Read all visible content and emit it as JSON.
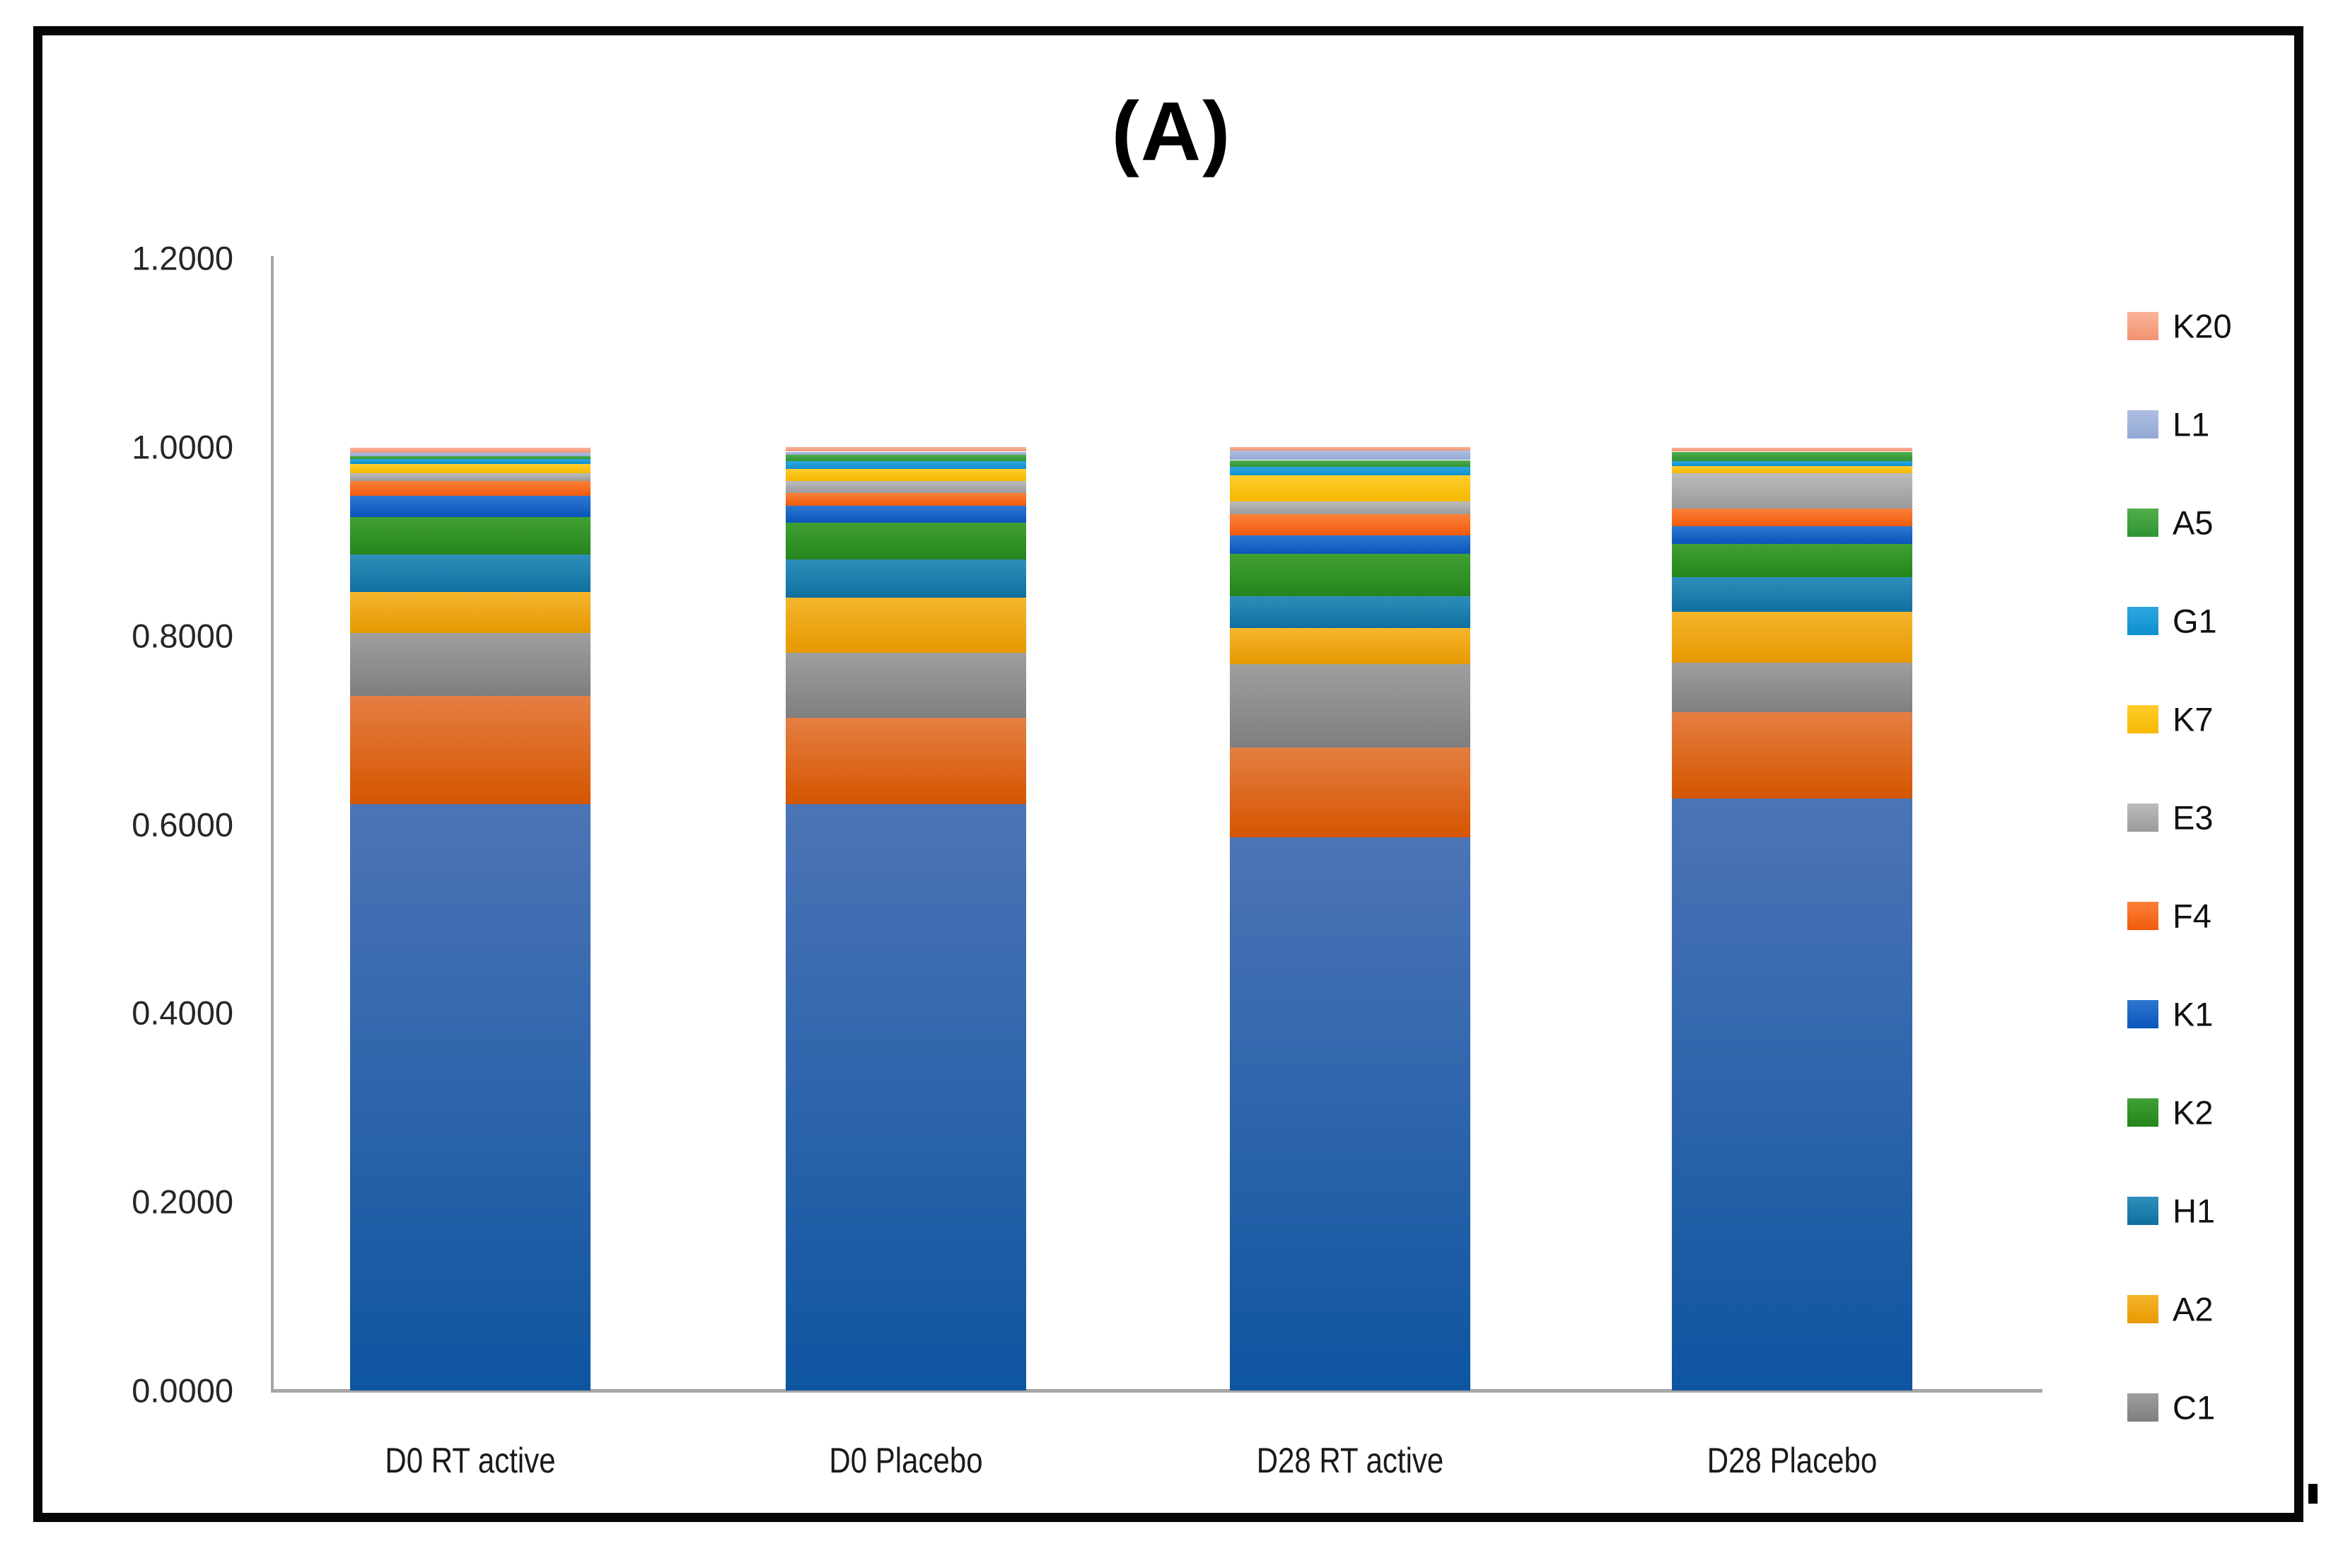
{
  "figure": {
    "panel_label": "(A)"
  },
  "y_axis": {
    "tick_labels": [
      "0.0000",
      "0.2000",
      "0.4000",
      "0.6000",
      "0.8000",
      "1.0000",
      "1.2000"
    ],
    "min": 0,
    "max": 1.2,
    "step": 0.2
  },
  "x_axis": {
    "categories": [
      "D0 RT active",
      "D0 Placebo",
      "D28 RT active",
      "D28 Placebo"
    ]
  },
  "chart_data": {
    "type": "bar",
    "stacked": true,
    "title": "(A)",
    "xlabel": "",
    "ylabel": "",
    "ylim": [
      0,
      1.2
    ],
    "grid": false,
    "legend_position": "right",
    "categories": [
      "D0 RT active",
      "D0 Placebo",
      "D28 RT active",
      "D28 Placebo"
    ],
    "series_bottom_to_top": [
      {
        "name": "",
        "id": "base-blue",
        "in_legend": false,
        "color_light": "#4C74B6",
        "color_dark": "#0E55A0",
        "values": [
          0.621,
          0.621,
          0.586,
          0.627
        ]
      },
      {
        "name": "",
        "id": "base-orange",
        "in_legend": false,
        "color_light": "#E57E42",
        "color_dark": "#D45500",
        "values": [
          0.115,
          0.092,
          0.095,
          0.092
        ]
      },
      {
        "name": "C1",
        "in_legend": true,
        "color_light": "#9E9E9E",
        "color_dark": "#7F7F7F",
        "values": [
          0.067,
          0.069,
          0.089,
          0.052
        ]
      },
      {
        "name": "A2",
        "in_legend": true,
        "color_light": "#F4B52D",
        "color_dark": "#E69900",
        "values": [
          0.043,
          0.058,
          0.038,
          0.054
        ]
      },
      {
        "name": "H1",
        "in_legend": true,
        "color_light": "#2F8FBA",
        "color_dark": "#0F6FA0",
        "values": [
          0.04,
          0.041,
          0.034,
          0.037
        ]
      },
      {
        "name": "K2",
        "in_legend": true,
        "color_light": "#41A033",
        "color_dark": "#23851C",
        "values": [
          0.04,
          0.039,
          0.045,
          0.035
        ]
      },
      {
        "name": "K1",
        "in_legend": true,
        "color_light": "#2E77D0",
        "color_dark": "#0A55BC",
        "values": [
          0.022,
          0.018,
          0.019,
          0.019
        ]
      },
      {
        "name": "F4",
        "in_legend": true,
        "color_light": "#FB813B",
        "color_dark": "#F15A0A",
        "values": [
          0.016,
          0.013,
          0.023,
          0.019
        ]
      },
      {
        "name": "E3",
        "in_legend": true,
        "color_light": "#BCBCBC",
        "color_dark": "#9A9A9A",
        "values": [
          0.008,
          0.013,
          0.013,
          0.037
        ]
      },
      {
        "name": "K7",
        "in_legend": true,
        "color_light": "#FFCD2E",
        "color_dark": "#F5B800",
        "values": [
          0.01,
          0.013,
          0.028,
          0.008
        ]
      },
      {
        "name": "G1",
        "in_legend": true,
        "color_light": "#2FA7DF",
        "color_dark": "#0D8FD0",
        "values": [
          0.005,
          0.008,
          0.009,
          0.005
        ]
      },
      {
        "name": "A5",
        "in_legend": true,
        "color_light": "#52AD4A",
        "color_dark": "#2F9434",
        "values": [
          0.003,
          0.007,
          0.007,
          0.01
        ]
      },
      {
        "name": "L1",
        "in_legend": true,
        "color_light": "#AEBEE2",
        "color_dark": "#93A9D4",
        "values": [
          0.004,
          0.003,
          0.01,
          0.0
        ]
      },
      {
        "name": "K20",
        "in_legend": true,
        "color_light": "#FAB49A",
        "color_dark": "#F29272",
        "values": [
          0.005,
          0.005,
          0.004,
          0.004
        ]
      }
    ],
    "legend_top_to_bottom": [
      "K20",
      "L1",
      "A5",
      "G1",
      "K7",
      "E3",
      "F4",
      "K1",
      "K2",
      "H1",
      "A2",
      "C1"
    ]
  },
  "colors": {
    "axis_line": "#a6a6a6",
    "text": "#262626",
    "frame": "#060606",
    "background": "#ffffff"
  }
}
